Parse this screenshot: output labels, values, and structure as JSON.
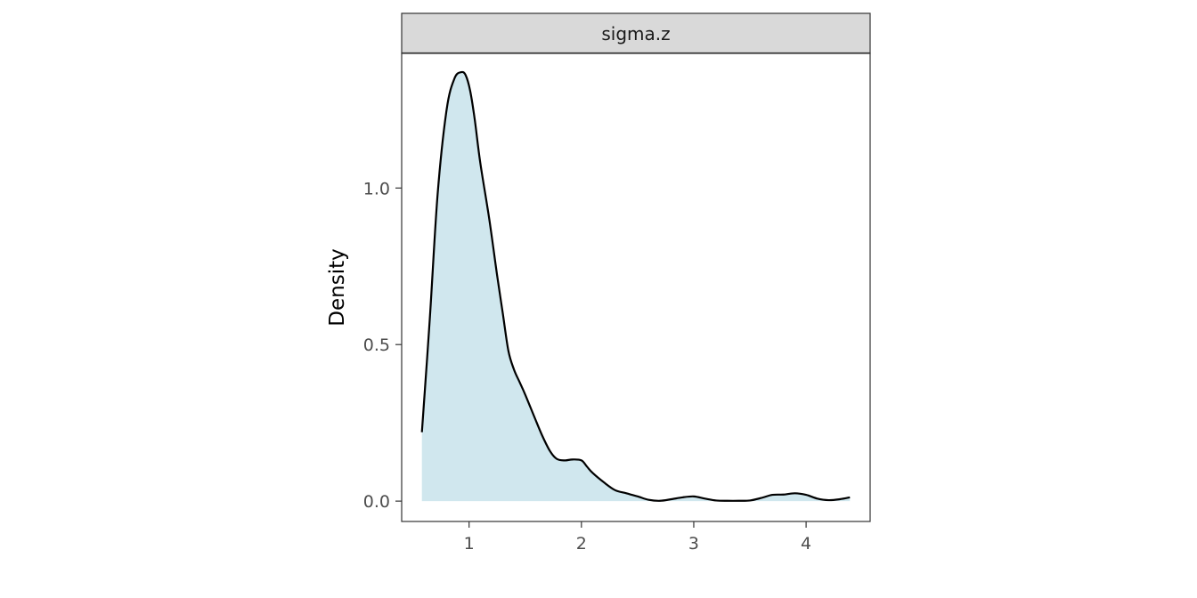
{
  "chart_data": {
    "type": "area",
    "panel_title": "sigma.z",
    "xlabel": "",
    "ylabel": "Density",
    "xlim": [
      0.4,
      4.57
    ],
    "ylim": [
      -0.065,
      1.43
    ],
    "x_ticks": [
      1,
      2,
      3,
      4
    ],
    "x_tick_labels": [
      "1",
      "2",
      "3",
      "4"
    ],
    "y_ticks": [
      0.0,
      0.5,
      1.0
    ],
    "y_tick_labels": [
      "0.0",
      "0.5",
      "1.0"
    ],
    "grid": false,
    "legend": "none",
    "fill_color": "#d0e7ee",
    "line_color": "#000000",
    "strip_fill": "#d9d9d9",
    "series": [
      {
        "x": [
          0.58,
          0.65,
          0.72,
          0.8,
          0.87,
          0.93,
          0.97,
          1.01,
          1.05,
          1.1,
          1.18,
          1.25,
          1.3,
          1.35,
          1.4,
          1.45,
          1.5,
          1.58,
          1.65,
          1.72,
          1.78,
          1.85,
          1.92,
          2.0,
          2.05,
          2.1,
          2.2,
          2.3,
          2.4,
          2.5,
          2.6,
          2.7,
          2.8,
          2.9,
          3.0,
          3.1,
          3.2,
          3.3,
          3.4,
          3.5,
          3.6,
          3.7,
          3.8,
          3.9,
          4.0,
          4.1,
          4.2,
          4.3,
          4.39
        ],
        "values": [
          0.22,
          0.58,
          0.98,
          1.25,
          1.35,
          1.37,
          1.36,
          1.31,
          1.22,
          1.08,
          0.9,
          0.72,
          0.6,
          0.48,
          0.42,
          0.38,
          0.34,
          0.27,
          0.21,
          0.16,
          0.135,
          0.13,
          0.133,
          0.13,
          0.11,
          0.09,
          0.06,
          0.035,
          0.025,
          0.015,
          0.004,
          0.001,
          0.006,
          0.012,
          0.015,
          0.008,
          0.002,
          0.001,
          0.001,
          0.002,
          0.01,
          0.02,
          0.021,
          0.025,
          0.02,
          0.008,
          0.003,
          0.006,
          0.012
        ]
      }
    ]
  }
}
